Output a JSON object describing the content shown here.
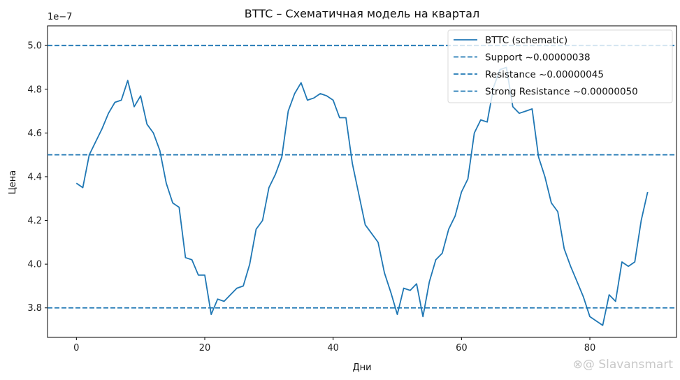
{
  "chart_data": {
    "type": "line",
    "title": "BTTC – Схематичная модель на квартал",
    "xlabel": "Дни",
    "ylabel": "Цена",
    "offset_label": "1e−7",
    "xlim": [
      -4.5,
      93.5
    ],
    "ylim": [
      3.665,
      5.09
    ],
    "x_ticks": [
      0,
      20,
      40,
      60,
      80
    ],
    "y_ticks": [
      3.8,
      4.0,
      4.2,
      4.4,
      4.6,
      4.8,
      5.0
    ],
    "y_tick_labels": [
      "3.8",
      "4.0",
      "4.2",
      "4.4",
      "4.6",
      "4.8",
      "5.0"
    ],
    "grid": false,
    "legend_position": "upper-right",
    "series": [
      {
        "name": "BTTC (schematic)",
        "style": "solid",
        "color": "#1f77b4",
        "x": [
          0,
          1,
          2,
          3,
          4,
          5,
          6,
          7,
          8,
          9,
          10,
          11,
          12,
          13,
          14,
          15,
          16,
          17,
          18,
          19,
          20,
          21,
          22,
          23,
          24,
          25,
          26,
          27,
          28,
          29,
          30,
          31,
          32,
          33,
          34,
          35,
          36,
          37,
          38,
          39,
          40,
          41,
          42,
          43,
          44,
          45,
          46,
          47,
          48,
          49,
          50,
          51,
          52,
          53,
          54,
          55,
          56,
          57,
          58,
          59,
          60,
          61,
          62,
          63,
          64,
          65,
          66,
          67,
          68,
          69,
          70,
          71,
          72,
          73,
          74,
          75,
          76,
          77,
          78,
          79,
          80,
          81,
          82,
          83,
          84,
          85,
          86,
          87,
          88,
          89
        ],
        "values": [
          4.37,
          4.35,
          4.5,
          4.56,
          4.62,
          4.69,
          4.74,
          4.75,
          4.84,
          4.72,
          4.77,
          4.64,
          4.6,
          4.52,
          4.37,
          4.28,
          4.26,
          4.03,
          4.02,
          3.95,
          3.95,
          3.77,
          3.84,
          3.83,
          3.86,
          3.89,
          3.9,
          4.0,
          4.16,
          4.2,
          4.35,
          4.41,
          4.49,
          4.7,
          4.78,
          4.83,
          4.75,
          4.76,
          4.78,
          4.77,
          4.75,
          4.67,
          4.67,
          4.46,
          4.32,
          4.18,
          4.14,
          4.1,
          3.96,
          3.87,
          3.77,
          3.89,
          3.88,
          3.91,
          3.76,
          3.92,
          4.02,
          4.05,
          4.16,
          4.22,
          4.33,
          4.39,
          4.6,
          4.66,
          4.65,
          4.81,
          4.89,
          4.9,
          4.72,
          4.69,
          4.7,
          4.71,
          4.49,
          4.4,
          4.28,
          4.24,
          4.07,
          3.99,
          3.92,
          3.85,
          3.76,
          3.74,
          3.72,
          3.86,
          3.83,
          4.01,
          3.99,
          4.01,
          4.2,
          4.33
        ]
      },
      {
        "name": "Support ~0.00000038",
        "style": "dashed",
        "color": "#1f77b4",
        "value": 3.8
      },
      {
        "name": "Resistance ~0.00000045",
        "style": "dashed",
        "color": "#1f77b4",
        "value": 4.5
      },
      {
        "name": "Strong Resistance ~0.00000050",
        "style": "dashed",
        "color": "#1f77b4",
        "value": 5.0
      }
    ]
  },
  "watermark": "⊗@ Slavansmart"
}
